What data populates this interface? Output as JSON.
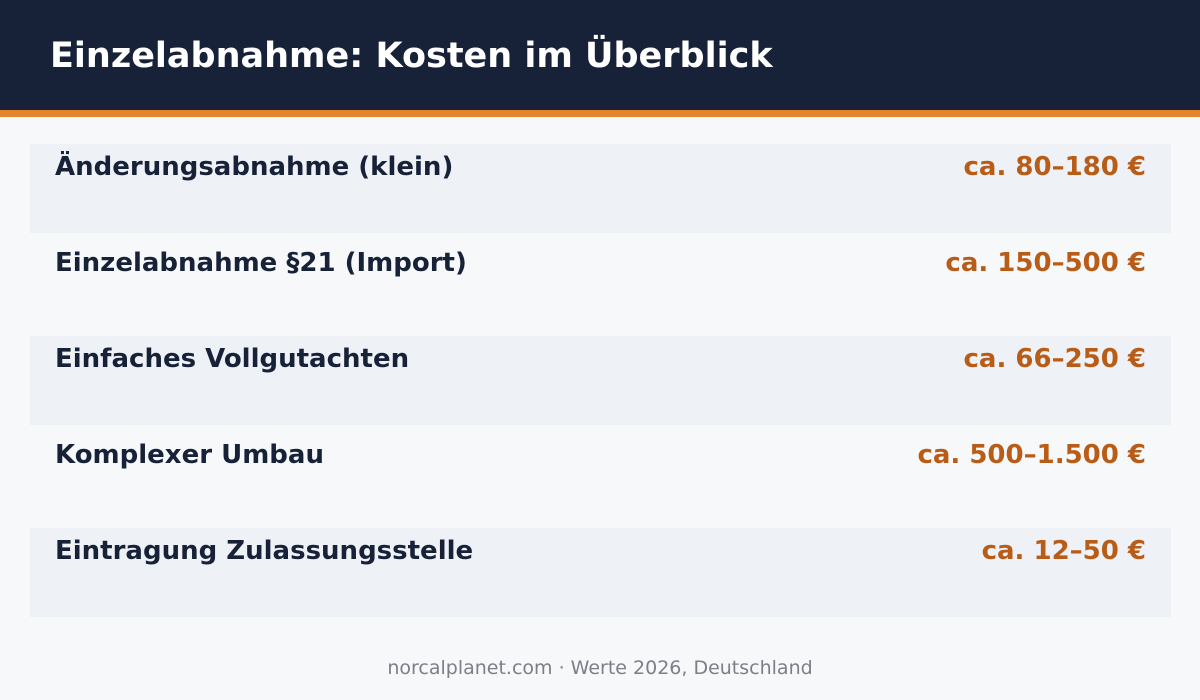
{
  "header": {
    "title": "Einzelabnahme: Kosten im Überblick"
  },
  "table": {
    "rows": [
      [
        "Änderungsabnahme (klein)",
        "ca. 80–180 €"
      ],
      [
        "Einzelabnahme §21 (Import)",
        "ca. 150–500 €"
      ],
      [
        "Einfaches Vollgutachten",
        "ca. 66–250 €"
      ],
      [
        "Komplexer Umbau",
        "ca. 500–1.500 €"
      ],
      [
        "Eintragung Zulassungsstelle",
        "ca. 12–50 €"
      ]
    ]
  },
  "footer": {
    "text": "norcalplanet.com · Werte 2026, Deutschland"
  }
}
